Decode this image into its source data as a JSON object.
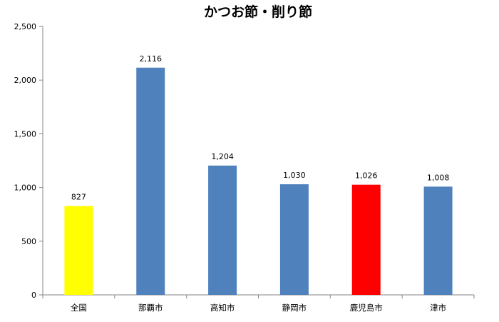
{
  "chart_data": {
    "type": "bar",
    "title": "かつお節・削り節",
    "xlabel": "",
    "ylabel": "",
    "categories": [
      "全国",
      "那覇市",
      "高知市",
      "静岡市",
      "鹿児島市",
      "津市"
    ],
    "values": [
      827,
      2116,
      1204,
      1030,
      1026,
      1008
    ],
    "value_labels": [
      "827",
      "2,116",
      "1,204",
      "1,030",
      "1,026",
      "1,008"
    ],
    "bar_colors": [
      "#FFFF00",
      "#4F81BD",
      "#4F81BD",
      "#4F81BD",
      "#FF0000",
      "#4F81BD"
    ],
    "ylim": [
      0,
      2500
    ],
    "yticks": [
      0,
      500,
      1000,
      1500,
      2000,
      2500
    ],
    "ytick_labels": [
      "0",
      "500",
      "1,000",
      "1,500",
      "2,000",
      "2,500"
    ],
    "grid": false,
    "legend": "none"
  }
}
